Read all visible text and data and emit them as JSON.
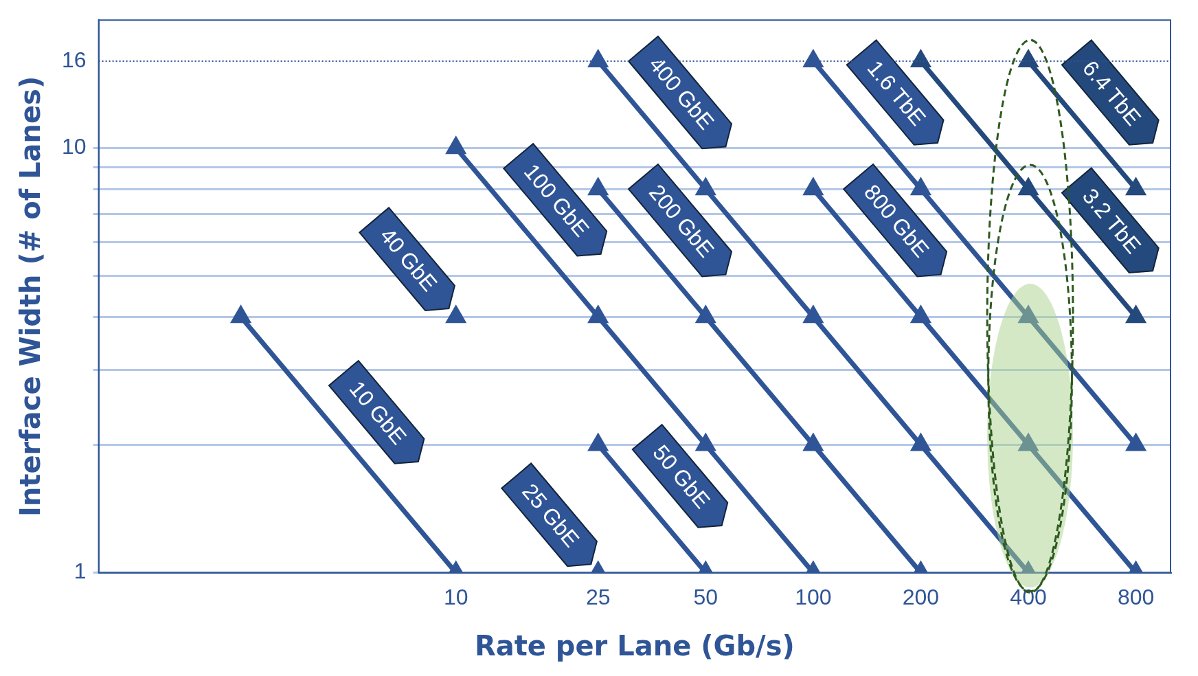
{
  "chart_data": {
    "type": "line",
    "xlabel": "Rate per Lane (Gb/s)",
    "ylabel": "Interface Width (# of Lanes)",
    "log": "xy",
    "grid": "y",
    "legend": false,
    "marker": "triangle",
    "line_style": "solid",
    "xlim": [
      1,
      1000
    ],
    "xticks": [
      10,
      25,
      50,
      100,
      200,
      400,
      800
    ],
    "ylim": [
      1,
      20
    ],
    "yticks": [
      1,
      {
        "value": 2,
        "label": null
      },
      {
        "value": 3,
        "label": null
      },
      {
        "value": 4,
        "label": null
      },
      {
        "value": 5,
        "label": null
      },
      {
        "value": 6,
        "label": null
      },
      {
        "value": 7,
        "label": null
      },
      {
        "value": 8,
        "label": null
      },
      {
        "value": 9,
        "label": null
      },
      10,
      16
    ],
    "ref_lines": [
      {
        "axis": "y",
        "value": 16,
        "line_style": "dotted",
        "color": "#2f5597"
      }
    ],
    "series": [
      {
        "name": "10 GbE",
        "color": "#2f5597",
        "x": [
          2.5,
          10
        ],
        "values": [
          4,
          1
        ]
      },
      {
        "name": "40 GbE",
        "color": "#2f5597",
        "x": [
          10
        ],
        "values": [
          4
        ]
      },
      {
        "name": "25 GbE",
        "color": "#2f5597",
        "x": [
          25
        ],
        "values": [
          1
        ]
      },
      {
        "name": "100 GbE",
        "color": "#2f5597",
        "x": [
          10,
          25,
          50,
          100
        ],
        "values": [
          10,
          4,
          2,
          1
        ]
      },
      {
        "name": "50 GbE",
        "color": "#2f5597",
        "x": [
          25,
          50
        ],
        "values": [
          2,
          1
        ]
      },
      {
        "name": "200 GbE",
        "color": "#2f5597",
        "x": [
          25,
          50,
          100,
          200
        ],
        "values": [
          8,
          4,
          2,
          1
        ]
      },
      {
        "name": "400 GbE",
        "color": "#2f5597",
        "x": [
          25,
          50,
          100,
          200,
          400
        ],
        "values": [
          16,
          8,
          4,
          2,
          1
        ]
      },
      {
        "name": "800 GbE",
        "color": "#2f5597",
        "x": [
          100,
          200,
          400,
          800
        ],
        "values": [
          8,
          4,
          2,
          1
        ]
      },
      {
        "name": "1.6 TbE",
        "color": "#2f5597",
        "x": [
          100,
          200,
          400,
          800
        ],
        "values": [
          16,
          8,
          4,
          2
        ]
      },
      {
        "name": "3.2 TbE",
        "color": "#24497c",
        "x": [
          200,
          400,
          800
        ],
        "values": [
          16,
          8,
          4
        ]
      },
      {
        "name": "6.4 TbE",
        "color": "#24497c",
        "x": [
          400,
          800
        ],
        "values": [
          16,
          8
        ]
      }
    ]
  }
}
